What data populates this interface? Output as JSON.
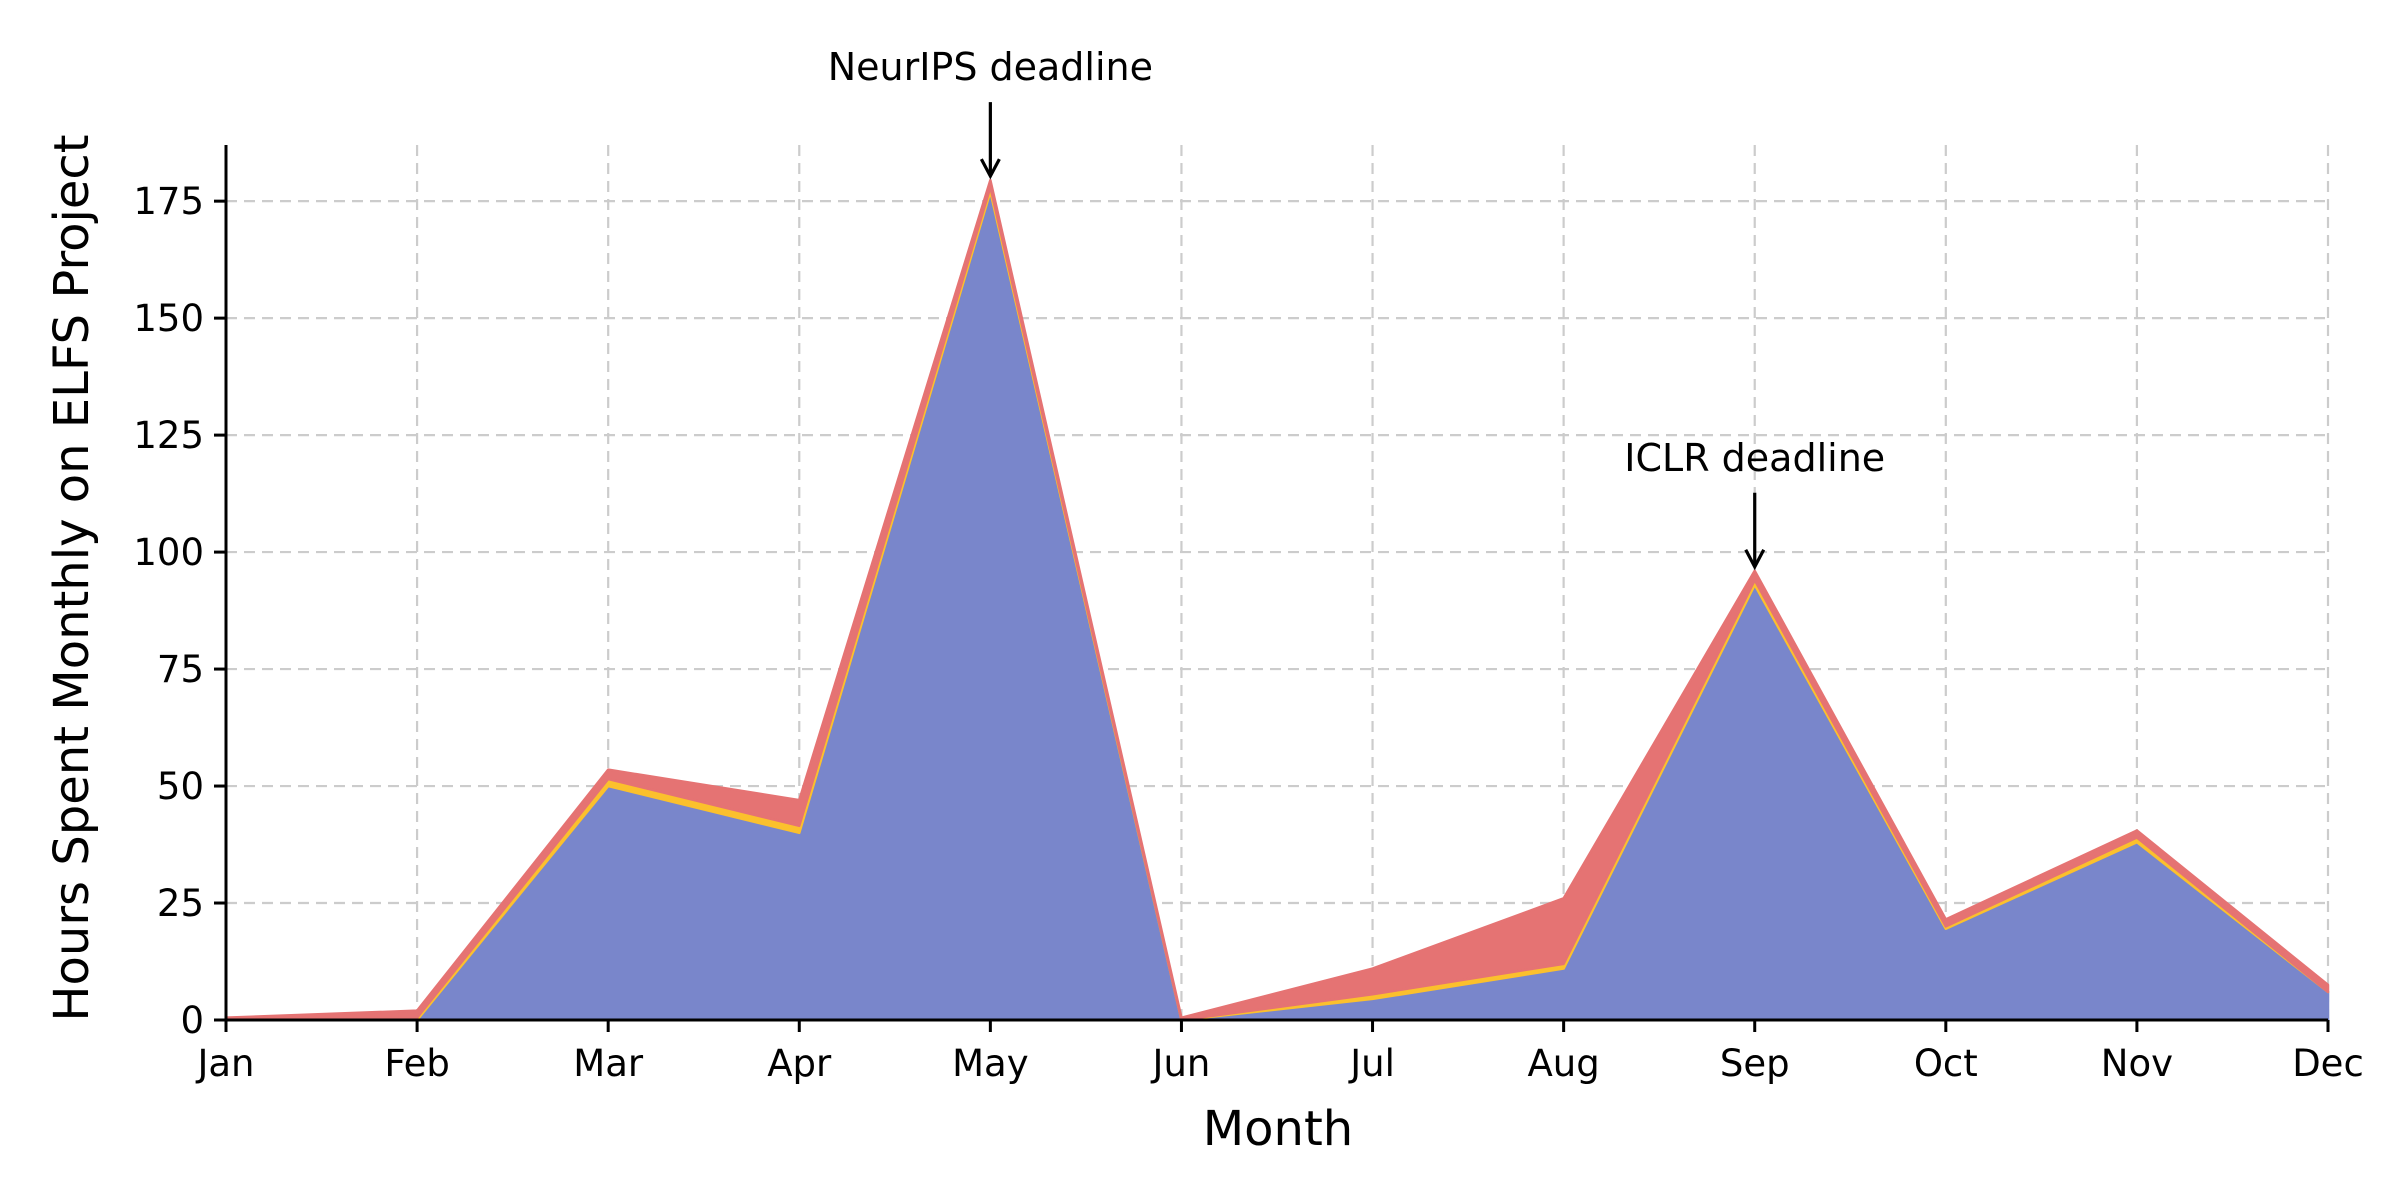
{
  "chart_data": {
    "type": "area",
    "stacked": true,
    "xlabel": "Month",
    "ylabel": "Hours Spent Monthly on ELFS Project",
    "categories": [
      "Jan",
      "Feb",
      "Mar",
      "Apr",
      "May",
      "Jun",
      "Jul",
      "Aug",
      "Sep",
      "Oct",
      "Nov",
      "Dec"
    ],
    "ylim": [
      0,
      187
    ],
    "yticks": [
      0,
      25,
      50,
      75,
      100,
      125,
      150,
      175
    ],
    "grid": true,
    "series": [
      {
        "color": "#7986cb",
        "values": [
          0,
          0,
          50,
          40,
          177,
          0,
          4.5,
          11,
          93,
          19.5,
          38,
          6
        ]
      },
      {
        "color": "#fbc02d",
        "values": [
          0,
          0.5,
          1.5,
          1.5,
          1,
          0,
          1,
          1,
          1,
          0.5,
          1,
          0
        ]
      },
      {
        "color": "#e57373",
        "values": [
          0.5,
          1.5,
          2,
          5.5,
          1.5,
          0.5,
          5.5,
          14,
          2,
          1.5,
          1.5,
          1.5
        ]
      }
    ],
    "annotations": [
      {
        "text": "NeurIPS deadline",
        "x": "May",
        "y": 179.5
      },
      {
        "text": "ICLR deadline",
        "x": "Sep",
        "y": 96
      }
    ]
  }
}
